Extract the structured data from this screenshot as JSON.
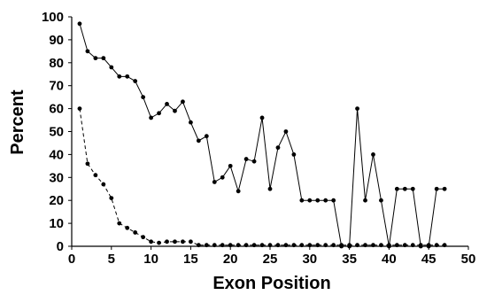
{
  "chart_data": {
    "type": "line",
    "title": "",
    "xlabel": "Exon Position",
    "ylabel": "Percent",
    "xlim": [
      0,
      50
    ],
    "ylim": [
      0,
      100
    ],
    "xticks": [
      0,
      5,
      10,
      15,
      20,
      25,
      30,
      35,
      40,
      45,
      50
    ],
    "yticks": [
      0,
      10,
      20,
      30,
      40,
      50,
      60,
      70,
      80,
      90,
      100
    ],
    "grid": false,
    "legend": "none",
    "series": [
      {
        "style": "solid",
        "color": "#000000",
        "x": [
          1,
          2,
          3,
          4,
          5,
          6,
          7,
          8,
          9,
          10,
          11,
          12,
          13,
          14,
          15,
          16,
          17,
          18,
          19,
          20,
          21,
          22,
          23,
          24,
          25,
          26,
          27,
          28,
          29,
          30,
          31,
          32,
          33,
          34,
          35,
          36,
          37,
          38,
          39,
          40,
          41,
          42,
          43,
          44,
          45,
          46,
          47
        ],
        "y": [
          97,
          85,
          82,
          82,
          78,
          74,
          74,
          72,
          65,
          56,
          58,
          62,
          59,
          63,
          54,
          46,
          48,
          28,
          30,
          35,
          24,
          38,
          37,
          56,
          25,
          43,
          50,
          40,
          20,
          20,
          20,
          20,
          20,
          0,
          0,
          60,
          20,
          40,
          20,
          0,
          25,
          25,
          25,
          0,
          0,
          25,
          25
        ]
      },
      {
        "style": "dashed",
        "color": "#000000",
        "x": [
          1,
          2,
          3,
          4,
          5,
          6,
          7,
          8,
          9,
          10,
          11,
          12,
          13,
          14,
          15,
          16,
          17,
          18,
          19,
          20,
          21,
          22,
          23,
          24,
          25,
          26,
          27,
          28,
          29,
          30,
          31,
          32,
          33,
          34,
          35,
          36,
          37,
          38,
          39,
          40,
          41,
          42,
          43,
          44,
          45,
          46,
          47
        ],
        "y": [
          60,
          36,
          31,
          27,
          21,
          10,
          8,
          6,
          4,
          2,
          1.5,
          2,
          2,
          2,
          2,
          0.5,
          0.5,
          0.5,
          0.5,
          0.5,
          0.5,
          0.5,
          0.5,
          0.5,
          0.5,
          0.5,
          0.5,
          0.5,
          0.5,
          0.5,
          0.5,
          0.5,
          0.5,
          0.5,
          0.5,
          0.5,
          0.5,
          0.5,
          0.5,
          0.5,
          0.5,
          0.5,
          0.5,
          0.5,
          0.5,
          0.5,
          0.5
        ]
      }
    ]
  }
}
